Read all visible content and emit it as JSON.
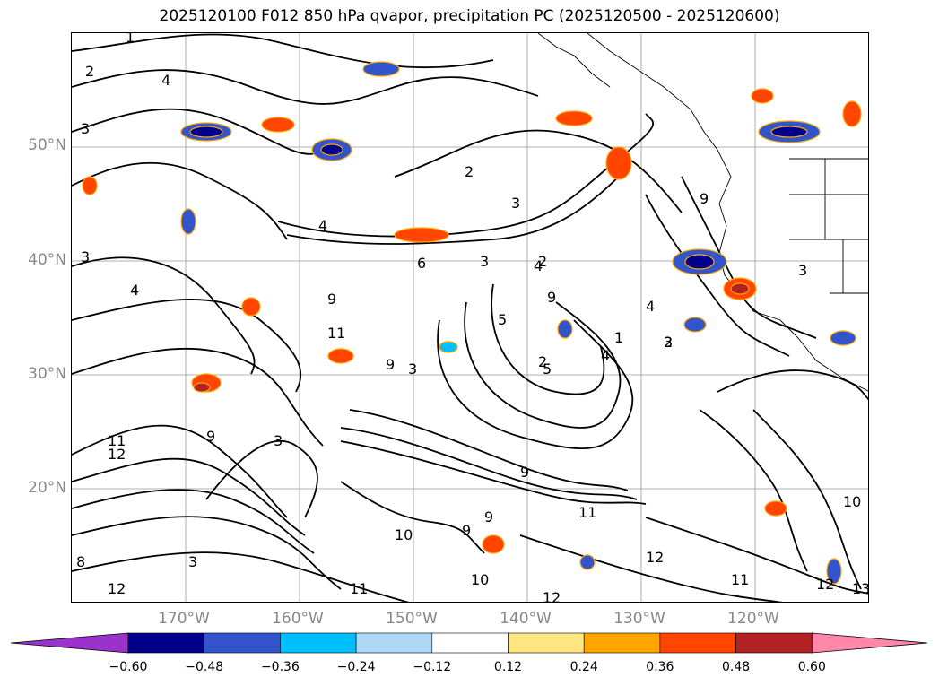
{
  "title": "2025120100 F012 850 hPa qvapor, precipitation PC (2025120500 - 2025120600)",
  "map": {
    "lat_labels": [
      "50°N",
      "40°N",
      "30°N",
      "20°N"
    ],
    "lon_labels": [
      "170°W",
      "160°W",
      "150°W",
      "140°W",
      "130°W",
      "120°W"
    ],
    "contour_labels": [
      "1",
      "2",
      "3",
      "4",
      "3",
      "4",
      "2",
      "3",
      "4",
      "2",
      "3",
      "4",
      "6",
      "9",
      "11",
      "9",
      "5",
      "9",
      "3",
      "4",
      "5",
      "2",
      "1",
      "3",
      "4",
      "11",
      "12",
      "9",
      "3",
      "9",
      "11",
      "12",
      "3",
      "10",
      "12",
      "9",
      "9",
      "10",
      "11",
      "12",
      "11",
      "12",
      "13",
      "10",
      "8",
      "9",
      "2",
      "3"
    ],
    "gridline_color": "#999999",
    "land_outline_color": "#000000"
  },
  "colorbar": {
    "colors": [
      "#9933cc",
      "#00008b",
      "#3355cc",
      "#00bfff",
      "#add8f6",
      "#ffffff",
      "#ffe680",
      "#ffa500",
      "#ff4500",
      "#b22222",
      "#ff88aa"
    ],
    "tick_labels": [
      "−0.60",
      "−0.48",
      "−0.36",
      "−0.24",
      "−0.12",
      "0.12",
      "0.24",
      "0.36",
      "0.48",
      "0.60"
    ]
  }
}
